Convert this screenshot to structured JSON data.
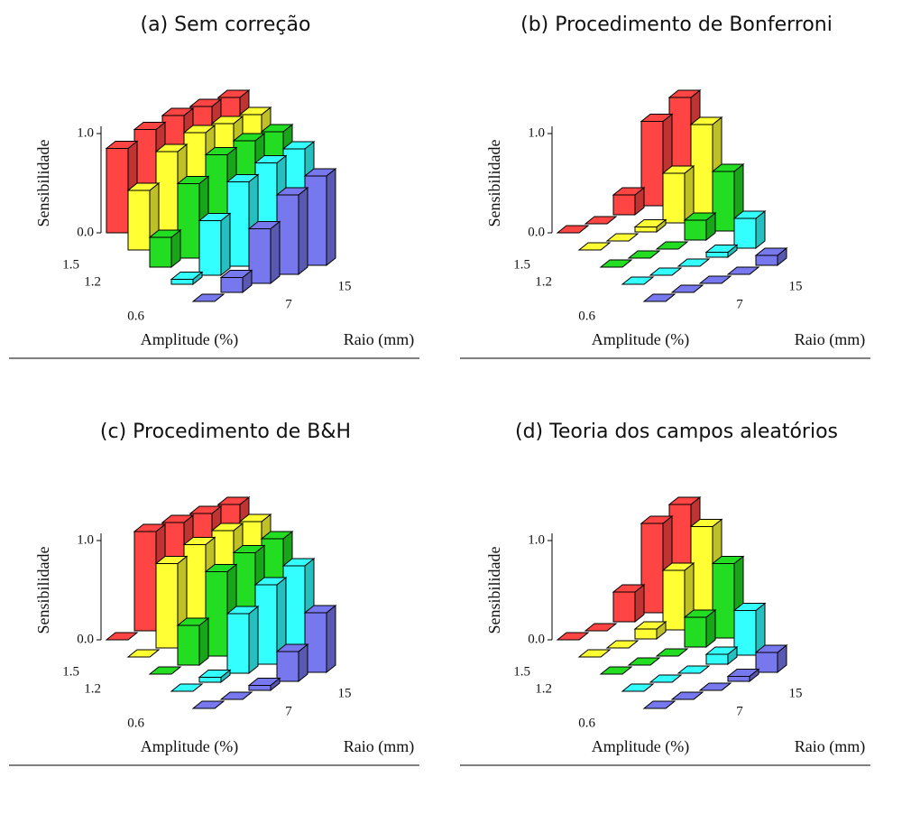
{
  "chart_data": [
    {
      "type": "bar3d",
      "title": "(a) Sem correção",
      "zlabel": "Sensibilidade",
      "xlabel": "Amplitude (%)",
      "ylabel": "Raio (mm)",
      "categories": [
        null,
        null,
        "7",
        null,
        "15"
      ],
      "rows": [
        "1.5",
        "1.2",
        null,
        "0.6",
        null
      ],
      "zlim": [
        0,
        1
      ],
      "zticks": [
        {
          "value": 0,
          "label": "0.0"
        },
        {
          "value": 1,
          "label": "1.0"
        }
      ],
      "series": [
        {
          "color": "#ff4444",
          "values": [
            0.85,
            0.95,
            1.0,
            1.0,
            1.0
          ]
        },
        {
          "color": "#ffff33",
          "values": [
            0.6,
            0.9,
            1.0,
            1.0,
            1.0
          ]
        },
        {
          "color": "#22dd22",
          "values": [
            0.3,
            0.75,
            0.95,
            1.0,
            1.0
          ]
        },
        {
          "color": "#33ffff",
          "values": [
            0.05,
            0.55,
            0.85,
            0.95,
            1.0
          ]
        },
        {
          "color": "#7777ee",
          "values": [
            0.0,
            0.15,
            0.55,
            0.8,
            0.9
          ]
        }
      ]
    },
    {
      "type": "bar3d",
      "title": "(b) Procedimento de Bonferroni",
      "zlabel": "Sensibilidade",
      "xlabel": "Amplitude (%)",
      "ylabel": "Raio (mm)",
      "categories": [
        null,
        null,
        "7",
        null,
        "15"
      ],
      "rows": [
        "1.5",
        "1.2",
        null,
        "0.6",
        null
      ],
      "zlim": [
        0,
        1
      ],
      "zticks": [
        {
          "value": 0,
          "label": "0.0"
        },
        {
          "value": 1,
          "label": "1.0"
        }
      ],
      "series": [
        {
          "color": "#ff4444",
          "values": [
            0.0,
            0.0,
            0.2,
            0.85,
            1.0
          ]
        },
        {
          "color": "#ffff33",
          "values": [
            0.0,
            0.0,
            0.05,
            0.5,
            0.9
          ]
        },
        {
          "color": "#22dd22",
          "values": [
            0.0,
            0.0,
            0.0,
            0.2,
            0.6
          ]
        },
        {
          "color": "#33ffff",
          "values": [
            0.0,
            0.0,
            0.0,
            0.05,
            0.3
          ]
        },
        {
          "color": "#7777ee",
          "values": [
            0.0,
            0.0,
            0.0,
            0.0,
            0.1
          ]
        }
      ]
    },
    {
      "type": "bar3d",
      "title": "(c) Procedimento de B&H",
      "zlabel": "Sensibilidade",
      "xlabel": "Amplitude (%)",
      "ylabel": "Raio (mm)",
      "categories": [
        null,
        null,
        "7",
        null,
        "15"
      ],
      "rows": [
        "1.5",
        "1.2",
        null,
        "0.6",
        null
      ],
      "zlim": [
        0,
        1
      ],
      "zticks": [
        {
          "value": 0,
          "label": "0.0"
        },
        {
          "value": 1,
          "label": "1.0"
        }
      ],
      "series": [
        {
          "color": "#ff4444",
          "values": [
            0.0,
            1.0,
            1.0,
            1.0,
            1.0
          ]
        },
        {
          "color": "#ffff33",
          "values": [
            0.0,
            0.85,
            0.95,
            1.0,
            1.0
          ]
        },
        {
          "color": "#22dd22",
          "values": [
            0.0,
            0.4,
            0.85,
            0.95,
            1.0
          ]
        },
        {
          "color": "#33ffff",
          "values": [
            0.0,
            0.05,
            0.6,
            0.8,
            0.9
          ]
        },
        {
          "color": "#7777ee",
          "values": [
            0.0,
            0.0,
            0.05,
            0.3,
            0.6
          ]
        }
      ]
    },
    {
      "type": "bar3d",
      "title": "(d) Teoria dos campos aleatórios",
      "zlabel": "Sensibilidade",
      "xlabel": "Amplitude (%)",
      "ylabel": "Raio (mm)",
      "categories": [
        null,
        null,
        "7",
        null,
        "15"
      ],
      "rows": [
        "1.5",
        "1.2",
        null,
        "0.6",
        null
      ],
      "zlim": [
        0,
        1
      ],
      "zticks": [
        {
          "value": 0,
          "label": "0.0"
        },
        {
          "value": 1,
          "label": "1.0"
        }
      ],
      "series": [
        {
          "color": "#ff4444",
          "values": [
            0.0,
            0.0,
            0.3,
            0.9,
            1.0
          ]
        },
        {
          "color": "#ffff33",
          "values": [
            0.0,
            0.0,
            0.1,
            0.6,
            0.95
          ]
        },
        {
          "color": "#22dd22",
          "values": [
            0.0,
            0.0,
            0.0,
            0.3,
            0.75
          ]
        },
        {
          "color": "#33ffff",
          "values": [
            0.0,
            0.0,
            0.0,
            0.1,
            0.45
          ]
        },
        {
          "color": "#7777ee",
          "values": [
            0.0,
            0.0,
            0.0,
            0.05,
            0.2
          ]
        }
      ]
    }
  ]
}
